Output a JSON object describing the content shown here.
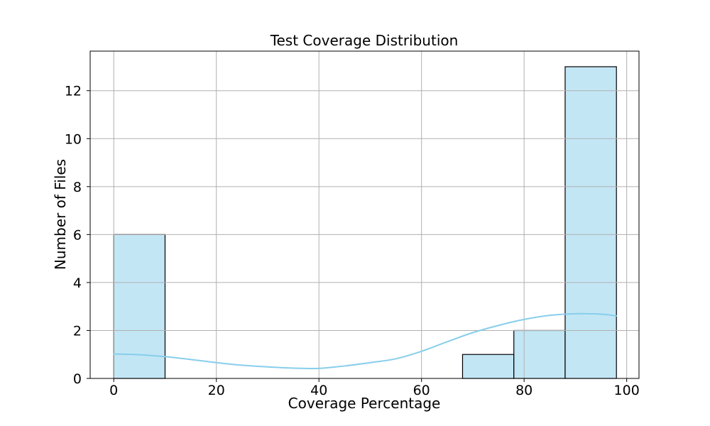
{
  "chart_data": {
    "type": "bar",
    "subtype": "histogram-with-kde",
    "title": "Test Coverage Distribution",
    "xlabel": "Coverage Percentage",
    "ylabel": "Number of Files",
    "x_ticks": [
      0,
      20,
      40,
      60,
      80,
      100
    ],
    "y_ticks": [
      0,
      2,
      4,
      6,
      8,
      10,
      12
    ],
    "xlim": [
      -4.6,
      102.4
    ],
    "ylim": [
      0,
      13.65
    ],
    "grid": true,
    "legend": false,
    "bins": [
      {
        "x0": 0,
        "x1": 10,
        "count": 6
      },
      {
        "x0": 68,
        "x1": 78,
        "count": 1
      },
      {
        "x0": 78,
        "x1": 88,
        "count": 2
      },
      {
        "x0": 88,
        "x1": 98,
        "count": 13
      }
    ],
    "series": [
      {
        "name": "kde",
        "points": [
          [
            0,
            1.02
          ],
          [
            5,
            0.99
          ],
          [
            10,
            0.91
          ],
          [
            15,
            0.79
          ],
          [
            20,
            0.66
          ],
          [
            25,
            0.55
          ],
          [
            30,
            0.48
          ],
          [
            35,
            0.43
          ],
          [
            40,
            0.42
          ],
          [
            45,
            0.52
          ],
          [
            50,
            0.66
          ],
          [
            55,
            0.82
          ],
          [
            60,
            1.13
          ],
          [
            65,
            1.53
          ],
          [
            70,
            1.91
          ],
          [
            75,
            2.21
          ],
          [
            80,
            2.46
          ],
          [
            85,
            2.63
          ],
          [
            90,
            2.7
          ],
          [
            95,
            2.68
          ],
          [
            98,
            2.61
          ]
        ]
      }
    ],
    "colors": {
      "bar_fill": "#c3e6f5",
      "bar_edge": "#000000",
      "kde_line": "#87ceeb",
      "grid": "#b0b0b0",
      "axis": "#000000",
      "text": "#000000",
      "background": "#ffffff"
    }
  }
}
